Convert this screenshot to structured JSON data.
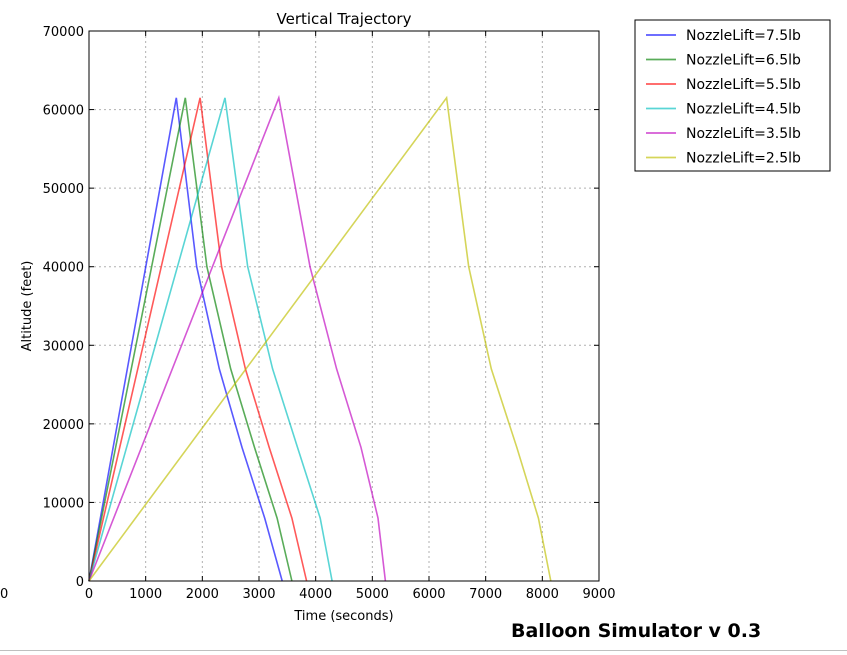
{
  "chart_data": {
    "type": "line",
    "title": "Vertical Trajectory",
    "xlabel": "Time (seconds)",
    "ylabel": "Altitude (feet)",
    "xlim": [
      0,
      9000
    ],
    "ylim": [
      0,
      70000
    ],
    "xticks": [
      0,
      1000,
      2000,
      3000,
      4000,
      5000,
      6000,
      7000,
      8000,
      9000
    ],
    "yticks": [
      0,
      10000,
      20000,
      30000,
      40000,
      50000,
      60000,
      70000
    ],
    "grid": true,
    "legend_position": "outside top-right",
    "series": [
      {
        "name": "NozzleLift=7.5lb",
        "color": "#0000ff",
        "x": [
          0,
          1540,
          1900,
          2300,
          2700,
          3100,
          3410
        ],
        "y": [
          0,
          61500,
          40000,
          27000,
          17000,
          8000,
          0
        ]
      },
      {
        "name": "NozzleLift=6.5lb",
        "color": "#008000",
        "x": [
          0,
          1700,
          2080,
          2500,
          2920,
          3320,
          3580
        ],
        "y": [
          0,
          61500,
          40000,
          27000,
          17000,
          8000,
          0
        ]
      },
      {
        "name": "NozzleLift=5.5lb",
        "color": "#ff0000",
        "x": [
          0,
          1960,
          2340,
          2760,
          3180,
          3580,
          3840
        ],
        "y": [
          0,
          61500,
          40000,
          27000,
          17000,
          8000,
          0
        ]
      },
      {
        "name": "NozzleLift=4.5lb",
        "color": "#00bfbf",
        "x": [
          0,
          2400,
          2800,
          3240,
          3680,
          4080,
          4290
        ],
        "y": [
          0,
          61500,
          40000,
          27000,
          17000,
          8000,
          0
        ]
      },
      {
        "name": "NozzleLift=3.5lb",
        "color": "#bf00bf",
        "x": [
          0,
          3350,
          3900,
          4370,
          4800,
          5100,
          5230
        ],
        "y": [
          0,
          61500,
          40000,
          27000,
          17000,
          8000,
          0
        ]
      },
      {
        "name": "NozzleLift=2.5lb",
        "color": "#bfbf00",
        "x": [
          0,
          6310,
          6700,
          7100,
          7550,
          7930,
          8150
        ],
        "y": [
          0,
          61500,
          40000,
          27000,
          17000,
          8000,
          0
        ]
      }
    ],
    "stray_label": "0"
  },
  "caption": "Balloon Simulator v 0.3"
}
